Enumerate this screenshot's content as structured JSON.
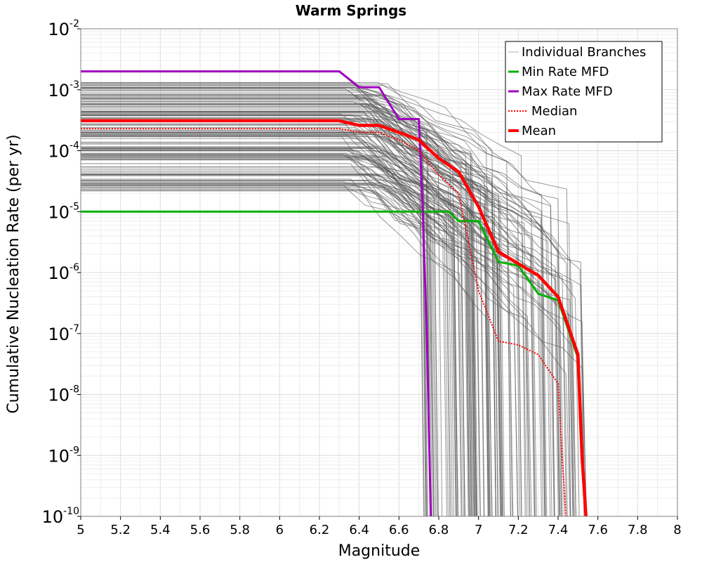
{
  "chart_data": {
    "type": "line",
    "title": "Warm Springs",
    "xlabel": "Magnitude",
    "ylabel": "Cumulative Nucleation Rate (per yr)",
    "xlim": [
      5,
      8
    ],
    "ylim": [
      1e-10,
      0.01
    ],
    "yscale": "log",
    "x_ticks": [
      "5",
      "5.2",
      "5.4",
      "5.6",
      "5.8",
      "6",
      "6.2",
      "6.4",
      "6.6",
      "6.8",
      "7",
      "7.2",
      "7.4",
      "7.6",
      "7.8",
      "8"
    ],
    "y_ticks": [
      {
        "base": "10",
        "exp": "-10"
      },
      {
        "base": "10",
        "exp": "-9"
      },
      {
        "base": "10",
        "exp": "-8"
      },
      {
        "base": "10",
        "exp": "-7"
      },
      {
        "base": "10",
        "exp": "-6"
      },
      {
        "base": "10",
        "exp": "-5"
      },
      {
        "base": "10",
        "exp": "-4"
      },
      {
        "base": "10",
        "exp": "-3"
      },
      {
        "base": "10",
        "exp": "-2"
      }
    ],
    "grid": true,
    "legend_position": "top-right",
    "legend": [
      {
        "label": "Individual Branches",
        "color": "#b0b0b0",
        "style": "solid-thin"
      },
      {
        "label": "Min Rate MFD",
        "color": "#00b000",
        "style": "solid"
      },
      {
        "label": "Max Rate MFD",
        "color": "#a000c0",
        "style": "solid"
      },
      {
        "label": "Median",
        "color": "#ff0000",
        "style": "dotted"
      },
      {
        "label": "Mean",
        "color": "#ff0000",
        "style": "solid-thick"
      }
    ],
    "series": [
      {
        "name": "Min Rate MFD",
        "color": "#00b000",
        "x": [
          5.0,
          6.7,
          6.85,
          6.9,
          7.0,
          7.1,
          7.2,
          7.3,
          7.4,
          7.5,
          7.52,
          7.54
        ],
        "y": [
          1e-05,
          1e-05,
          1e-05,
          7e-06,
          7e-06,
          1.5e-06,
          1.3e-06,
          4.5e-07,
          3.5e-07,
          4e-08,
          1e-09,
          1e-10
        ]
      },
      {
        "name": "Max Rate MFD",
        "color": "#a000c0",
        "x": [
          5.0,
          6.3,
          6.4,
          6.5,
          6.6,
          6.7,
          6.72,
          6.74,
          6.76
        ],
        "y": [
          0.002,
          0.002,
          0.0011,
          0.0011,
          0.00033,
          0.00033,
          1e-05,
          1e-07,
          1e-10
        ]
      },
      {
        "name": "Median",
        "color": "#ff0000",
        "x": [
          5.0,
          6.3,
          6.4,
          6.5,
          6.6,
          6.7,
          6.8,
          6.9,
          7.0,
          7.1,
          7.2,
          7.3,
          7.4,
          7.42,
          7.44
        ],
        "y": [
          0.00023,
          0.00023,
          0.0002,
          0.0002,
          0.00015,
          0.0001,
          4e-05,
          2e-05,
          5e-07,
          7.5e-08,
          6.5e-08,
          4.5e-08,
          1.5e-08,
          1e-09,
          1e-10
        ]
      },
      {
        "name": "Mean",
        "color": "#ff0000",
        "x": [
          5.0,
          6.3,
          6.4,
          6.5,
          6.6,
          6.7,
          6.8,
          6.9,
          7.0,
          7.1,
          7.2,
          7.3,
          7.4,
          7.5,
          7.52,
          7.54
        ],
        "y": [
          0.00031,
          0.00031,
          0.00026,
          0.00026,
          0.0002,
          0.00015,
          7.5e-05,
          4.5e-05,
          1.2e-05,
          2.2e-06,
          1.4e-06,
          9e-07,
          4e-07,
          4.5e-08,
          1e-09,
          1e-10
        ]
      }
    ],
    "branches": {
      "color": "#555555",
      "rate_range": [
        2e-05,
        0.0014
      ],
      "max_magnitude_range": [
        6.7,
        7.54
      ]
    }
  }
}
